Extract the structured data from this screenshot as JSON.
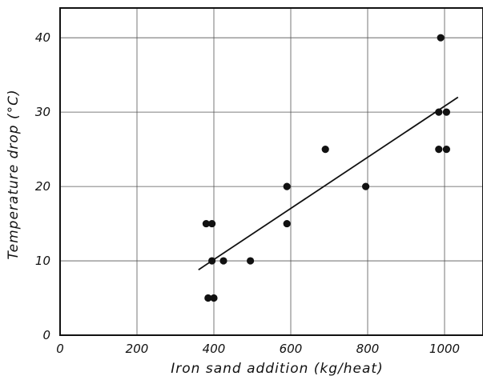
{
  "chart_data": {
    "type": "scatter",
    "title": "",
    "xlabel": "Iron sand addition (kg/heat)",
    "ylabel": "Temperature drop (°C)",
    "xlim": [
      0,
      1100
    ],
    "ylim": [
      0,
      44
    ],
    "x_ticks": [
      0,
      200,
      400,
      600,
      800,
      1000
    ],
    "y_ticks": [
      0,
      10,
      20,
      30,
      40
    ],
    "x_tick_labels": [
      "0",
      "200",
      "400",
      "600",
      "800",
      "1000"
    ],
    "y_tick_labels": [
      "0",
      "10",
      "20",
      "30",
      "40"
    ],
    "grid": true,
    "series": [
      {
        "points": [
          {
            "x": 380,
            "y": 15
          },
          {
            "x": 395,
            "y": 15
          },
          {
            "x": 385,
            "y": 5
          },
          {
            "x": 400,
            "y": 5
          },
          {
            "x": 395,
            "y": 10
          },
          {
            "x": 425,
            "y": 10
          },
          {
            "x": 495,
            "y": 10
          },
          {
            "x": 590,
            "y": 20
          },
          {
            "x": 590,
            "y": 15
          },
          {
            "x": 690,
            "y": 25
          },
          {
            "x": 795,
            "y": 20
          },
          {
            "x": 985,
            "y": 30
          },
          {
            "x": 1005,
            "y": 30
          },
          {
            "x": 990,
            "y": 40
          },
          {
            "x": 985,
            "y": 25
          },
          {
            "x": 1005,
            "y": 25
          }
        ]
      }
    ],
    "fit_line": {
      "x": [
        360,
        1035
      ],
      "y": [
        8.8,
        32
      ]
    }
  }
}
